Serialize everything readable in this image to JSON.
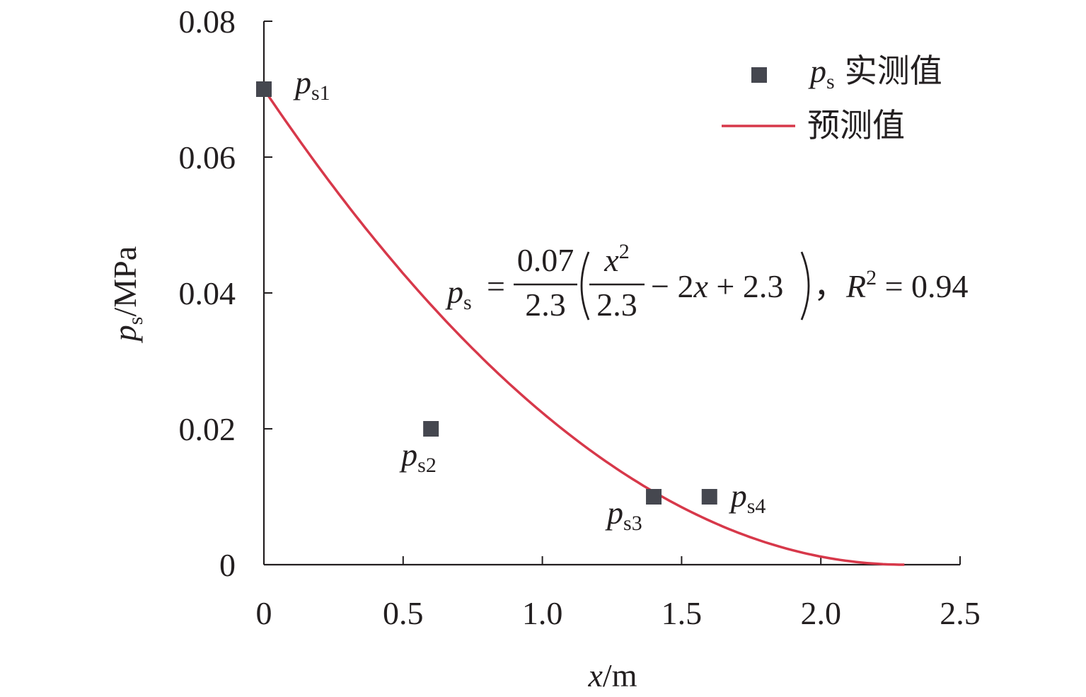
{
  "chart_data": {
    "type": "scatter",
    "xlabel": {
      "var": "x",
      "unit": "/m"
    },
    "ylabel": {
      "var": "p",
      "sub": "s",
      "unit": "/MPa"
    },
    "xlim": [
      0,
      2.5
    ],
    "ylim": [
      0,
      0.08
    ],
    "x_ticks": [
      0,
      0.5,
      1.0,
      1.5,
      2.0,
      2.5
    ],
    "x_tick_labels": [
      "0",
      "0.5",
      "1.0",
      "1.5",
      "2.0",
      "2.5"
    ],
    "y_ticks": [
      0,
      0.02,
      0.04,
      0.06,
      0.08
    ],
    "y_tick_labels": [
      "0",
      "0.02",
      "0.04",
      "0.06",
      "0.08"
    ],
    "grid": false,
    "legend_position": "top-right",
    "legend": [
      {
        "var": "p",
        "sub": "s",
        "text": "实测值",
        "marker": "square",
        "color": "#45474f"
      },
      {
        "text": "预测值",
        "marker": "line",
        "color": "#d7384a"
      }
    ],
    "series": [
      {
        "name": "实测值",
        "type": "scatter",
        "color": "#45474f",
        "points": [
          {
            "x": 0.0,
            "y": 0.07,
            "label_var": "p",
            "label_sub": "s1"
          },
          {
            "x": 0.6,
            "y": 0.02,
            "label_var": "p",
            "label_sub": "s2"
          },
          {
            "x": 1.4,
            "y": 0.01,
            "label_var": "p",
            "label_sub": "s3"
          },
          {
            "x": 1.6,
            "y": 0.01,
            "label_var": "p",
            "label_sub": "s4"
          }
        ]
      },
      {
        "name": "预测值",
        "type": "line",
        "color": "#d7384a",
        "x_range": [
          0,
          2.3
        ],
        "formula": {
          "coef": 0.07,
          "a": 2.3,
          "c1": 2,
          "c0": 2.3
        }
      }
    ],
    "annotation": {
      "lhs_var": "p",
      "lhs_sub": "s",
      "eq": "=",
      "num": "0.07",
      "den": "2.3",
      "inner_num_var": "x",
      "inner_num_sup": "2",
      "inner_den": "2.3",
      "rest_1": "− 2",
      "rest_var": "x",
      "rest_2": " + 2.3",
      "sep": "，",
      "r_var": "R",
      "r_sup": "2",
      "r_rest": " = 0.94"
    }
  }
}
